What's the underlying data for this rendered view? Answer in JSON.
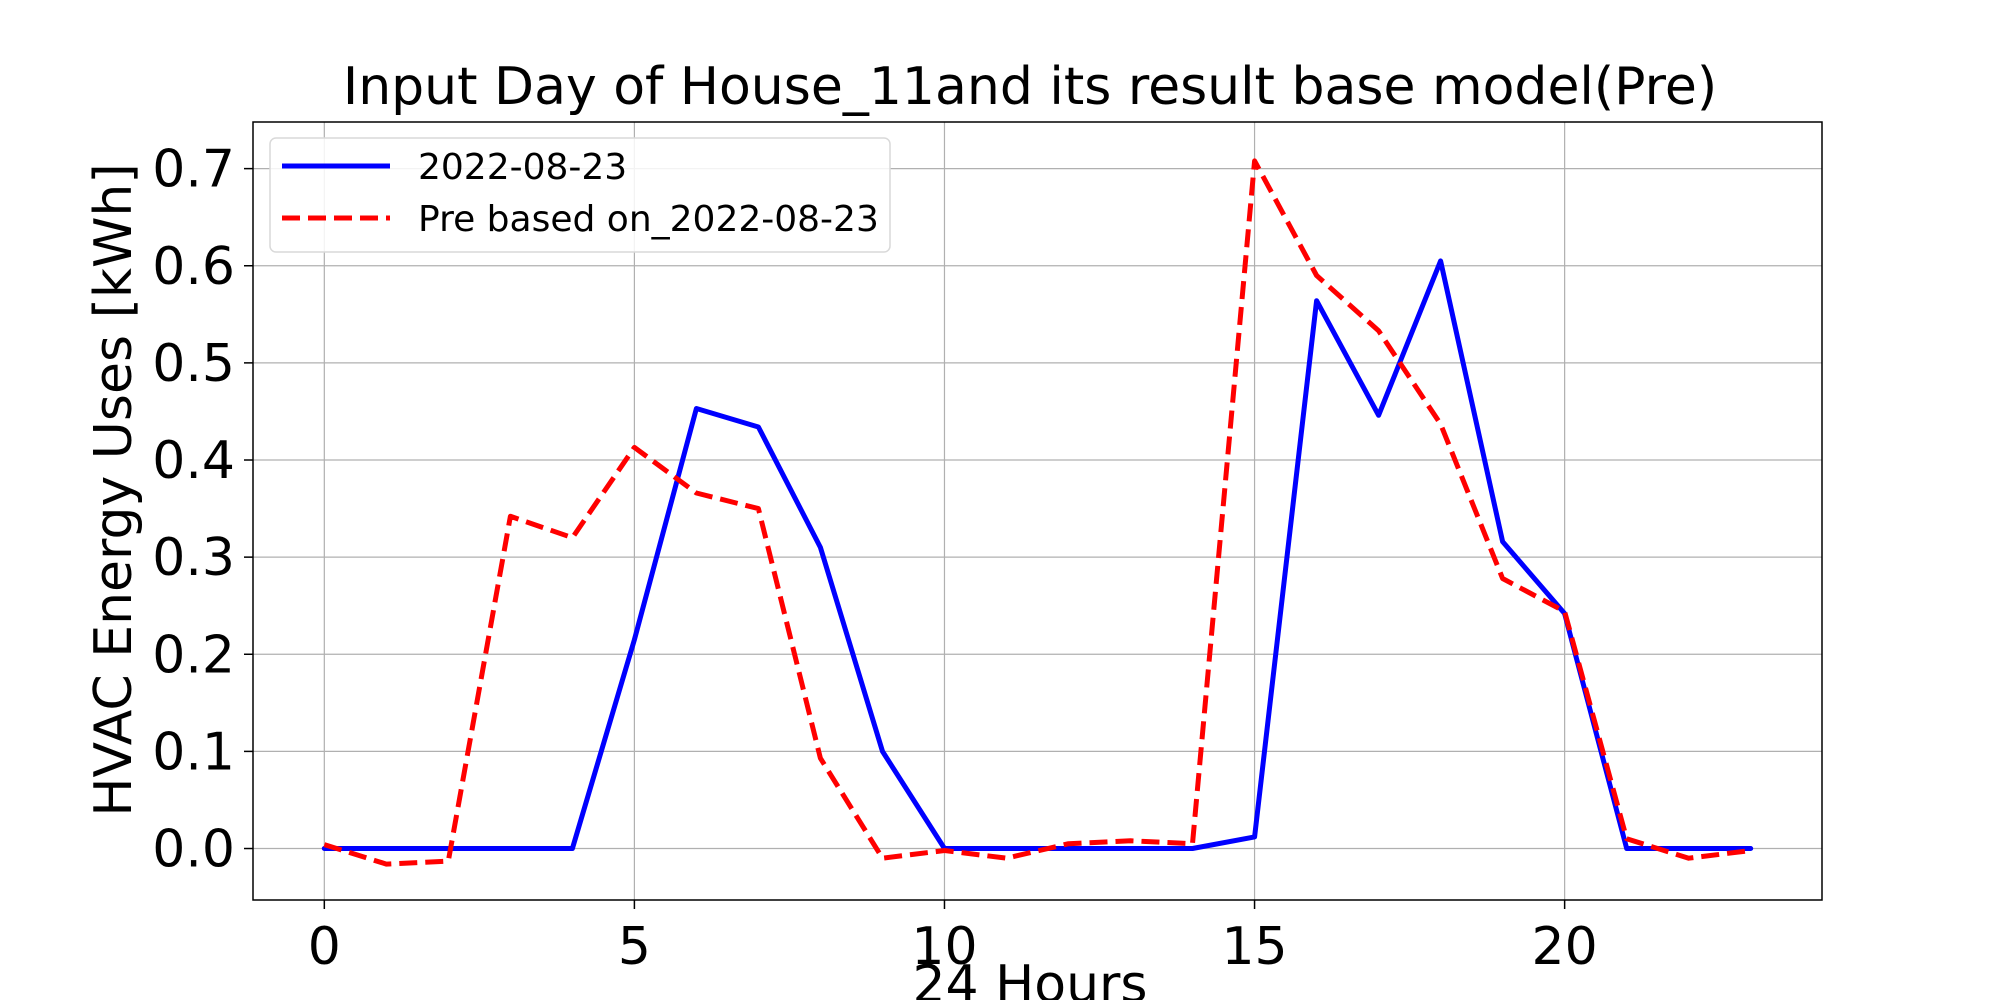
{
  "chart_data": {
    "type": "line",
    "title": "Input Day of House_11and its result base model(Pre)",
    "xlabel": "24 Hours",
    "ylabel": "HVAC Energy Uses [kWh]",
    "xlim": [
      -1.15,
      24.15
    ],
    "ylim": [
      -0.053,
      0.748
    ],
    "xticks": [
      0,
      5,
      10,
      15,
      20
    ],
    "yticks": [
      0.0,
      0.1,
      0.2,
      0.3,
      0.4,
      0.5,
      0.6,
      0.7
    ],
    "ytick_labels": [
      "0.0",
      "0.1",
      "0.2",
      "0.3",
      "0.4",
      "0.5",
      "0.6",
      "0.7"
    ],
    "grid": true,
    "legend_position": "upper-left",
    "x": [
      0,
      1,
      2,
      3,
      4,
      5,
      6,
      7,
      8,
      9,
      10,
      11,
      12,
      13,
      14,
      15,
      16,
      17,
      18,
      19,
      20,
      21,
      22,
      23
    ],
    "series": [
      {
        "name": "2022-08-23",
        "color": "#0000ff",
        "style": "solid",
        "values": [
          0.0,
          0.0,
          0.0,
          0.0,
          0.0,
          0.215,
          0.453,
          0.434,
          0.31,
          0.1,
          0.0,
          0.0,
          0.0,
          0.0,
          0.0,
          0.012,
          0.564,
          0.446,
          0.605,
          0.316,
          0.242,
          0.0,
          0.0,
          0.0
        ]
      },
      {
        "name": "Pre based on_2022-08-23",
        "color": "#ff0000",
        "style": "dashed",
        "values": [
          0.004,
          -0.016,
          -0.013,
          0.342,
          0.32,
          0.413,
          0.366,
          0.35,
          0.093,
          -0.01,
          -0.002,
          -0.01,
          0.005,
          0.008,
          0.005,
          0.708,
          0.59,
          0.533,
          0.437,
          0.278,
          0.244,
          0.01,
          -0.01,
          -0.002
        ]
      }
    ]
  }
}
